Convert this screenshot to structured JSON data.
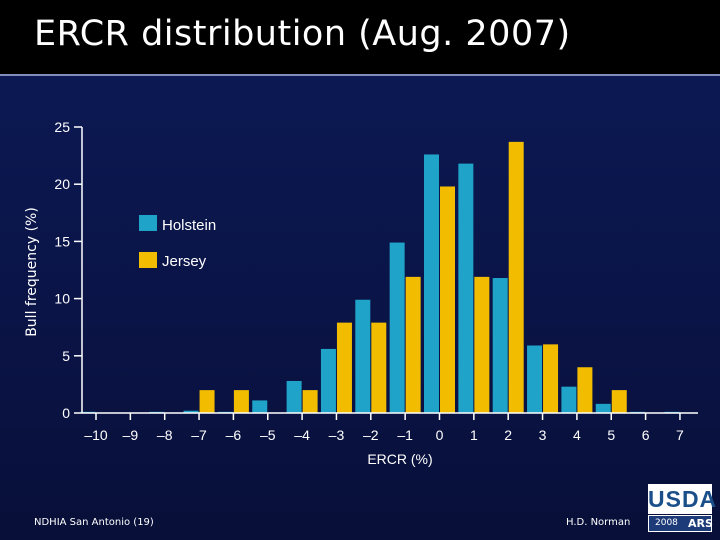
{
  "slide": {
    "title": "ERCR distribution (Aug. 2007)"
  },
  "footer": {
    "left": "NDHIA San Antonio (19)",
    "right": "H.D. Norman"
  },
  "logo": {
    "text": "USDA",
    "year": "2008",
    "mark": "ARS"
  },
  "colors": {
    "holstein": "#1fa3c9",
    "jersey": "#f2bd00",
    "axis": "#ffffff"
  },
  "chart_data": {
    "type": "bar",
    "title": "",
    "xlabel": "ERCR (%)",
    "ylabel": "Bull frequency (%)",
    "ylim": [
      0,
      25
    ],
    "yticks": [
      0,
      5,
      10,
      15,
      20,
      25
    ],
    "categories": [
      "–10",
      "–9",
      "–8",
      "–7",
      "–6",
      "–5",
      "–4",
      "–3",
      "–2",
      "–1",
      "0",
      "1",
      "2",
      "3",
      "4",
      "5",
      "6",
      "7"
    ],
    "legend_position": "upper-left",
    "series": [
      {
        "name": "Holstein",
        "values": [
          0.1,
          0,
          0.1,
          0.2,
          0.1,
          1.1,
          2.8,
          5.6,
          9.9,
          14.9,
          22.6,
          21.8,
          11.8,
          5.9,
          2.3,
          0.8,
          0.1,
          0.1
        ]
      },
      {
        "name": "Jersey",
        "values": [
          0,
          0,
          0,
          2.0,
          2.0,
          0,
          2.0,
          7.9,
          7.9,
          11.9,
          19.8,
          11.9,
          23.7,
          6.0,
          4.0,
          2.0,
          0,
          0
        ]
      }
    ]
  }
}
